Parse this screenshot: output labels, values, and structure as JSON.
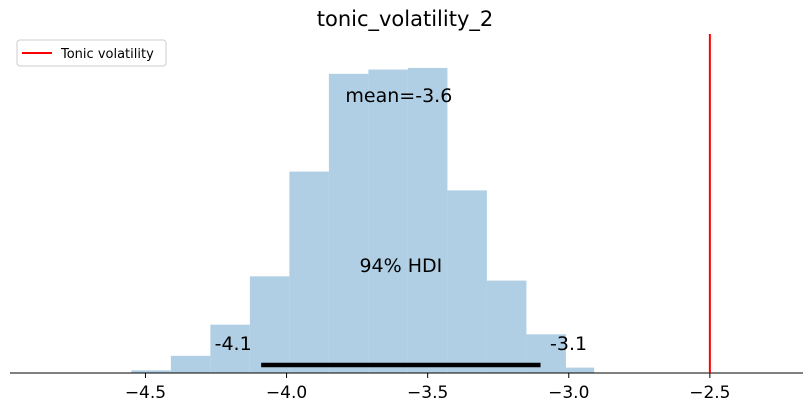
{
  "chart_data": {
    "type": "histogram",
    "title": "tonic_volatility_2",
    "xlabel": "",
    "ylabel": "",
    "xlim": [
      -4.98,
      -2.17
    ],
    "xticks": [
      -4.5,
      -4.0,
      -3.5,
      -3.0,
      -2.5
    ],
    "xtick_labels": [
      "−4.5",
      "−4.0",
      "−3.5",
      "−3.0",
      "−2.5"
    ],
    "bars": [
      {
        "x0": -4.55,
        "x1": -4.41,
        "value": 0.5
      },
      {
        "x0": -4.41,
        "x1": -4.27,
        "value": 3.2
      },
      {
        "x0": -4.27,
        "x1": -4.13,
        "value": 9.0
      },
      {
        "x0": -4.13,
        "x1": -3.99,
        "value": 18.0
      },
      {
        "x0": -3.99,
        "x1": -3.85,
        "value": 37.5
      },
      {
        "x0": -3.85,
        "x1": -3.71,
        "value": 55.7
      },
      {
        "x0": -3.71,
        "x1": -3.57,
        "value": 56.5
      },
      {
        "x0": -3.57,
        "x1": -3.43,
        "value": 56.8
      },
      {
        "x0": -3.43,
        "x1": -3.29,
        "value": 34.0
      },
      {
        "x0": -3.29,
        "x1": -3.15,
        "value": 17.2
      },
      {
        "x0": -3.15,
        "x1": -3.01,
        "value": 7.2
      },
      {
        "x0": -3.01,
        "x1": -2.91,
        "value": 1.0
      }
    ],
    "ylim": [
      0,
      62
    ],
    "bar_color": "#b0cfe4",
    "reference_line": {
      "x": -2.5,
      "label": "Tonic volatility",
      "color": "#ff0000"
    },
    "mean_label": "mean=-3.6",
    "hdi": {
      "low": -4.09,
      "high": -3.1,
      "label": "94% HDI",
      "low_label": "-4.1",
      "high_label": "-3.1"
    },
    "legend_position": "top-left",
    "grid": false
  }
}
